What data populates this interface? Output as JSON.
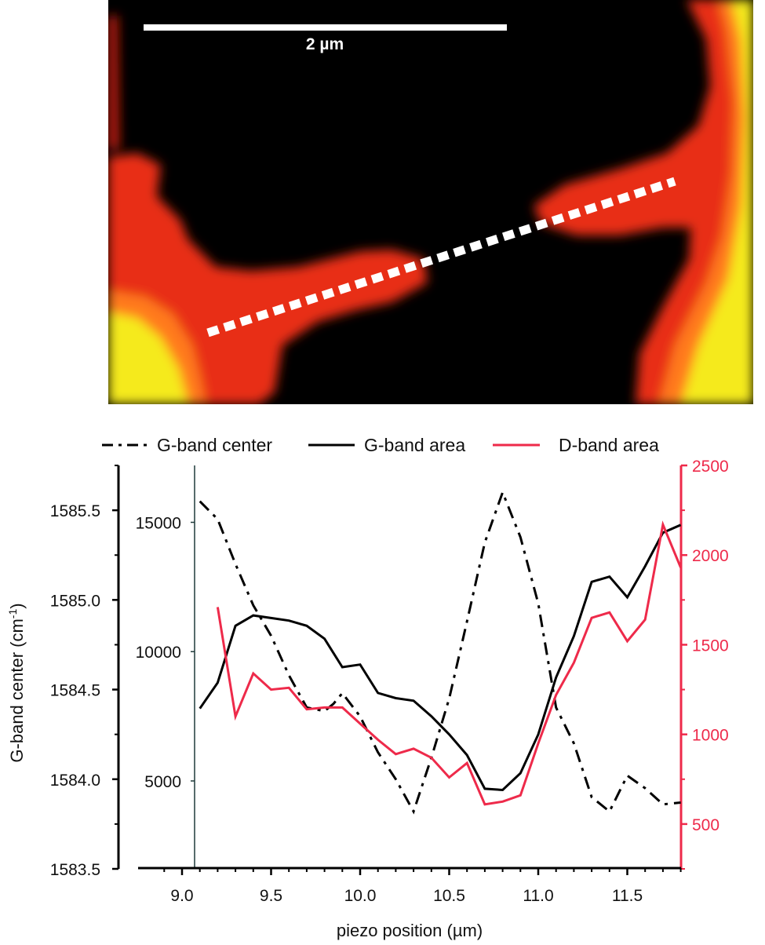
{
  "image": {
    "scale_bar_label": "2 µm"
  },
  "chart_data": {
    "type": "line",
    "xlabel": "piezo position (µm)",
    "ylabel_left": "G-band center (cm⁻¹)",
    "ylabel_left_parts": {
      "main": "G-band center (cm",
      "sup": "-1",
      "close": ")"
    },
    "xlim": [
      8.8,
      11.8
    ],
    "x_ticks": [
      "9.0",
      "9.5",
      "10.0",
      "10.5",
      "11.0",
      "11.5"
    ],
    "y_center_lim": [
      1583.5,
      1585.75
    ],
    "y_center_ticks": [
      "1583.5",
      "1584.0",
      "1584.5",
      "1585.0",
      "1585.5"
    ],
    "y_area_lim": [
      1600,
      17200
    ],
    "y_area_ticks": [
      "5000",
      "10000",
      "15000"
    ],
    "y_d_lim": [
      250,
      2500
    ],
    "y_d_ticks": [
      "500",
      "1000",
      "1500",
      "2000",
      "2500"
    ],
    "legend_position": "top",
    "colors": {
      "g_center": "#000000",
      "g_area": "#000000",
      "d_area": "#ee2a4a",
      "right_axis": "#ee2a4a"
    },
    "series": [
      {
        "name": "G-band center",
        "axis": "left",
        "style": "dash-dot",
        "x": [
          9.1,
          9.2,
          9.3,
          9.4,
          9.5,
          9.6,
          9.7,
          9.8,
          9.85,
          9.9,
          10.0,
          10.1,
          10.2,
          10.3,
          10.4,
          10.5,
          10.6,
          10.7,
          10.8,
          10.9,
          11.0,
          11.1,
          11.2,
          11.3,
          11.4,
          11.5,
          11.6,
          11.7,
          11.8
        ],
        "values": [
          1585.55,
          1585.45,
          1585.2,
          1584.97,
          1584.8,
          1584.58,
          1584.4,
          1584.38,
          1584.42,
          1584.48,
          1584.35,
          1584.15,
          1584.0,
          1583.82,
          1584.12,
          1584.45,
          1584.88,
          1585.32,
          1585.6,
          1585.35,
          1584.98,
          1584.4,
          1584.2,
          1583.9,
          1583.82,
          1584.02,
          1583.95,
          1583.86,
          1583.87
        ]
      },
      {
        "name": "G-band area",
        "axis": "left2",
        "style": "solid",
        "x": [
          9.1,
          9.2,
          9.3,
          9.4,
          9.5,
          9.6,
          9.7,
          9.8,
          9.9,
          10.0,
          10.1,
          10.2,
          10.3,
          10.4,
          10.5,
          10.6,
          10.7,
          10.8,
          10.9,
          11.0,
          11.1,
          11.2,
          11.3,
          11.4,
          11.5,
          11.6,
          11.7,
          11.8
        ],
        "values": [
          7800,
          8800,
          11000,
          11400,
          11300,
          11200,
          11000,
          10500,
          9400,
          9500,
          8400,
          8200,
          8100,
          7500,
          6800,
          6000,
          4700,
          4650,
          5300,
          6800,
          9000,
          10600,
          12700,
          12900,
          12100,
          13300,
          14600,
          14900
        ]
      },
      {
        "name": "D-band area",
        "axis": "right",
        "style": "solid",
        "x": [
          9.2,
          9.3,
          9.4,
          9.5,
          9.6,
          9.7,
          9.8,
          9.9,
          10.0,
          10.1,
          10.2,
          10.3,
          10.4,
          10.5,
          10.6,
          10.7,
          10.8,
          10.9,
          11.0,
          11.1,
          11.2,
          11.3,
          11.4,
          11.5,
          11.6,
          11.7,
          11.8
        ],
        "values": [
          1710,
          1100,
          1340,
          1250,
          1260,
          1140,
          1150,
          1150,
          1060,
          970,
          890,
          920,
          870,
          760,
          840,
          610,
          625,
          660,
          950,
          1220,
          1400,
          1650,
          1680,
          1520,
          1640,
          2170,
          1930
        ]
      }
    ]
  }
}
